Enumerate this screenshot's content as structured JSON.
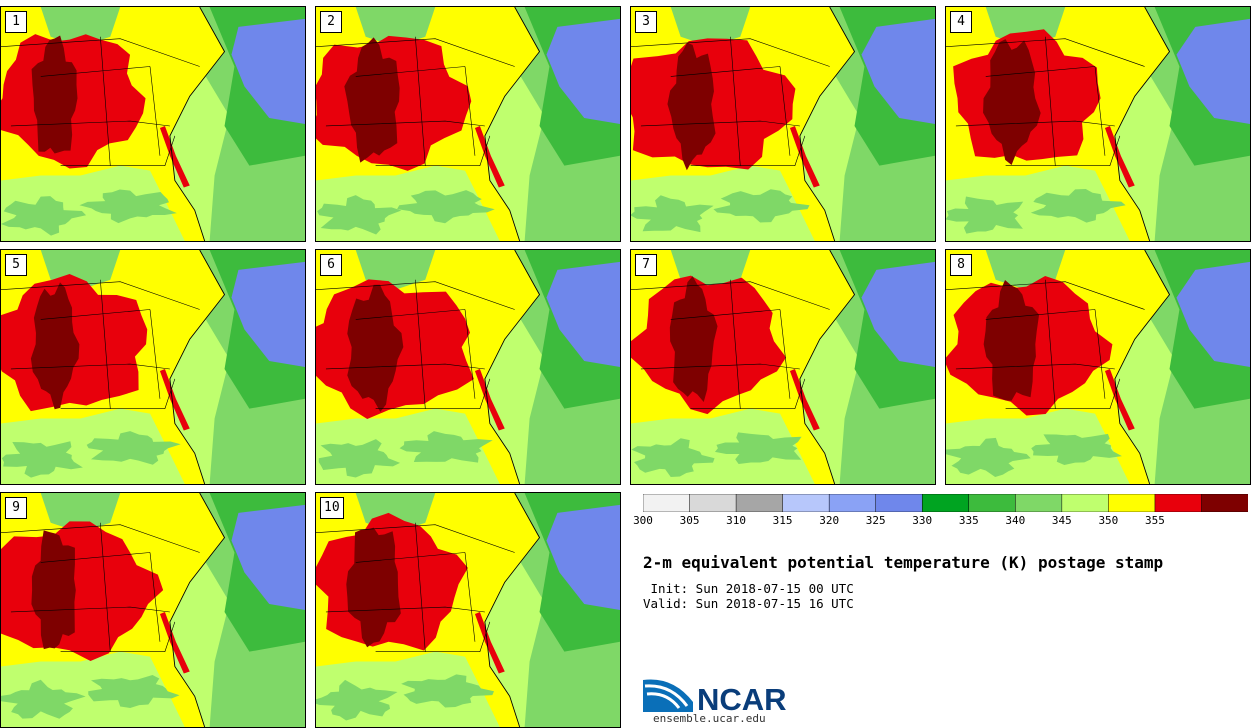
{
  "stamps": [
    {
      "label": "1",
      "variant": 0
    },
    {
      "label": "2",
      "variant": 1
    },
    {
      "label": "3",
      "variant": 2
    },
    {
      "label": "4",
      "variant": 3
    },
    {
      "label": "5",
      "variant": 4
    },
    {
      "label": "6",
      "variant": 5
    },
    {
      "label": "7",
      "variant": 6
    },
    {
      "label": "8",
      "variant": 7
    },
    {
      "label": "9",
      "variant": 8
    },
    {
      "label": "10",
      "variant": 9
    }
  ],
  "colorbar": {
    "ticks": [
      "300",
      "305",
      "310",
      "315",
      "320",
      "325",
      "330",
      "335",
      "340",
      "345",
      "350",
      "355"
    ],
    "colors": [
      "#f2f2f2",
      "#d9d9d9",
      "#a6a6a6",
      "#b7c7fb",
      "#8aa2f5",
      "#6f87eb",
      "#00a421",
      "#3dbb3d",
      "#7fd867",
      "#bfff6e",
      "#ffff00",
      "#e8000c",
      "#7e0000"
    ]
  },
  "palette": {
    "ocean_gulf": "#bfff6e",
    "atlantic_green": "#7fd867",
    "deep_atlantic": "#3dbb3d",
    "blue_sea": "#6f87eb",
    "yellow": "#ffff00",
    "red": "#e8000c",
    "dark_red": "#7e0000",
    "coast": "#000000"
  },
  "title": "2-m equivalent potential temperature (K) postage stamp",
  "init": " Init: Sun 2018-07-15 00 UTC",
  "valid": "Valid: Sun 2018-07-15 16 UTC",
  "logo": {
    "text": "NCAR",
    "url": "ensemble.ucar.edu",
    "accent": "#0a6fb8"
  }
}
